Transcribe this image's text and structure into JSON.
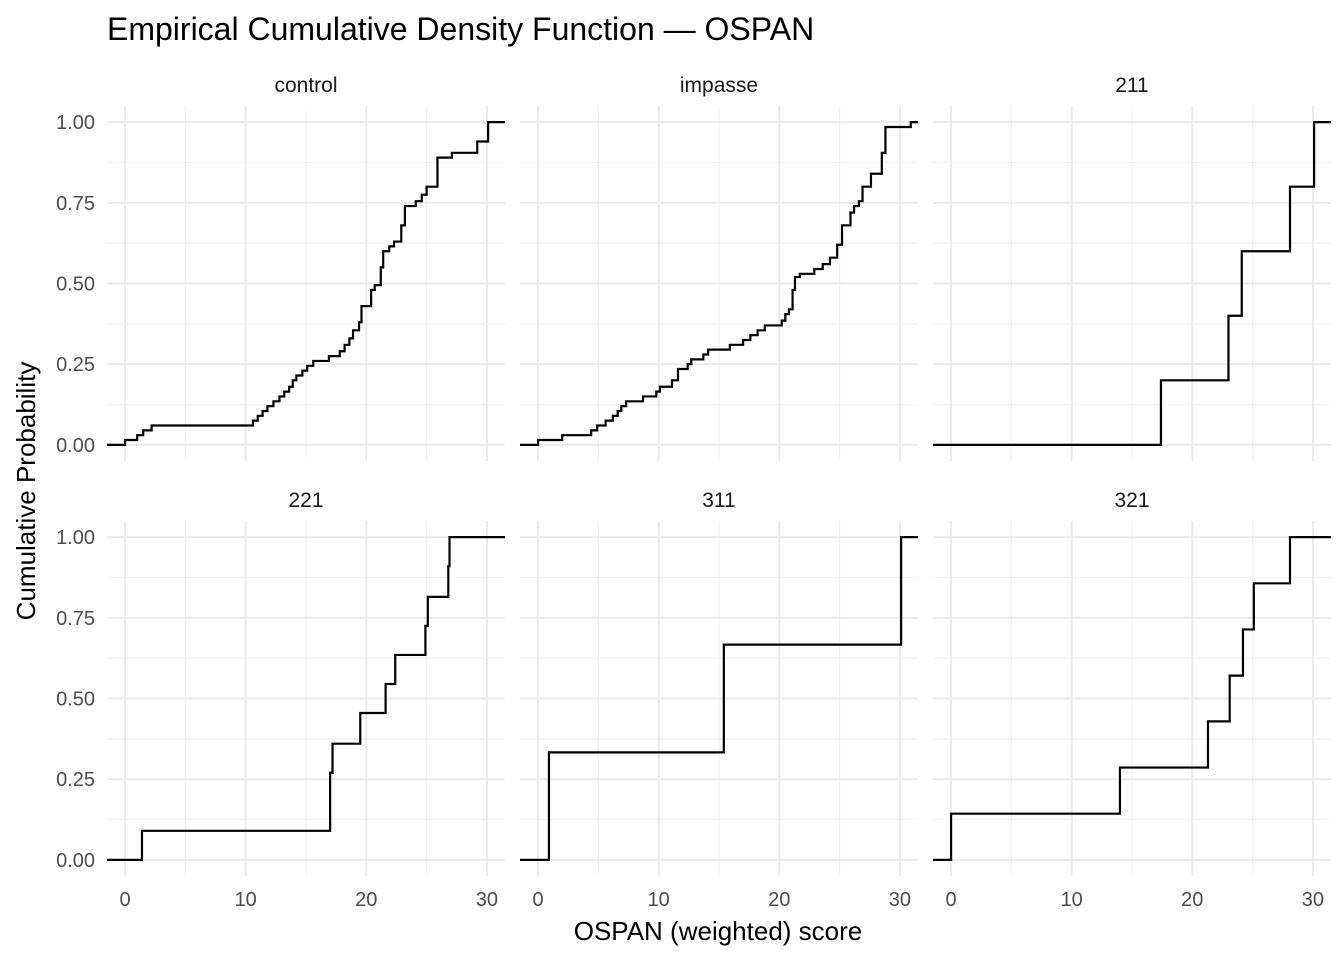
{
  "chart_data": {
    "type": "line",
    "title": "Empirical Cumulative Density Function — OSPAN",
    "xlabel": "OSPAN (weighted) score",
    "ylabel": "Cumulative Probability",
    "xlim": [
      -1.5,
      31.5
    ],
    "ylim": [
      -0.05,
      1.05
    ],
    "x_ticks": [
      0,
      10,
      20,
      30
    ],
    "x_tick_labels": [
      "0",
      "10",
      "20",
      "30"
    ],
    "y_ticks": [
      0,
      0.25,
      0.5,
      0.75,
      1.0
    ],
    "y_tick_labels": [
      "0.00",
      "0.25",
      "0.50",
      "0.75",
      "1.00"
    ],
    "grid": true,
    "layout": "facet grid, 2 rows x 3 columns, shared axes",
    "panels": [
      {
        "label": "control",
        "steps": [
          [
            -1.5,
            0
          ],
          [
            0,
            0.015
          ],
          [
            1,
            0.03
          ],
          [
            1.5,
            0.045
          ],
          [
            2.2,
            0.06
          ],
          [
            10.6,
            0.075
          ],
          [
            11,
            0.09
          ],
          [
            11.4,
            0.105
          ],
          [
            11.8,
            0.12
          ],
          [
            12.3,
            0.135
          ],
          [
            12.8,
            0.15
          ],
          [
            13.2,
            0.165
          ],
          [
            13.6,
            0.18
          ],
          [
            13.9,
            0.2
          ],
          [
            14.2,
            0.215
          ],
          [
            14.7,
            0.23
          ],
          [
            15.1,
            0.245
          ],
          [
            15.6,
            0.26
          ],
          [
            16.9,
            0.275
          ],
          [
            17.8,
            0.29
          ],
          [
            18.2,
            0.31
          ],
          [
            18.6,
            0.33
          ],
          [
            18.9,
            0.355
          ],
          [
            19.4,
            0.38
          ],
          [
            19.6,
            0.43
          ],
          [
            20.4,
            0.48
          ],
          [
            20.7,
            0.495
          ],
          [
            21.2,
            0.55
          ],
          [
            21.4,
            0.6
          ],
          [
            21.9,
            0.615
          ],
          [
            22.3,
            0.63
          ],
          [
            22.9,
            0.68
          ],
          [
            23.2,
            0.74
          ],
          [
            24.1,
            0.755
          ],
          [
            24.6,
            0.775
          ],
          [
            25,
            0.8
          ],
          [
            25.9,
            0.89
          ],
          [
            27.1,
            0.905
          ],
          [
            29.2,
            0.94
          ],
          [
            30.1,
            1.0
          ],
          [
            31.5,
            1.0
          ]
        ]
      },
      {
        "label": "impasse",
        "steps": [
          [
            -1.5,
            0
          ],
          [
            0,
            0.015
          ],
          [
            2,
            0.03
          ],
          [
            4.4,
            0.045
          ],
          [
            4.9,
            0.06
          ],
          [
            5.6,
            0.075
          ],
          [
            6.2,
            0.09
          ],
          [
            6.6,
            0.105
          ],
          [
            6.9,
            0.12
          ],
          [
            7.3,
            0.135
          ],
          [
            8.7,
            0.15
          ],
          [
            9.8,
            0.165
          ],
          [
            10.1,
            0.18
          ],
          [
            11.1,
            0.2
          ],
          [
            11.6,
            0.235
          ],
          [
            12.4,
            0.25
          ],
          [
            12.7,
            0.265
          ],
          [
            13.7,
            0.28
          ],
          [
            14.1,
            0.295
          ],
          [
            15.9,
            0.31
          ],
          [
            17,
            0.325
          ],
          [
            17.6,
            0.34
          ],
          [
            18.2,
            0.355
          ],
          [
            18.8,
            0.37
          ],
          [
            20.2,
            0.385
          ],
          [
            20.5,
            0.405
          ],
          [
            20.8,
            0.42
          ],
          [
            21.1,
            0.48
          ],
          [
            21.3,
            0.52
          ],
          [
            21.7,
            0.53
          ],
          [
            22.9,
            0.545
          ],
          [
            23.6,
            0.56
          ],
          [
            24.2,
            0.58
          ],
          [
            24.8,
            0.62
          ],
          [
            25.2,
            0.68
          ],
          [
            25.9,
            0.72
          ],
          [
            26.2,
            0.74
          ],
          [
            26.6,
            0.755
          ],
          [
            26.9,
            0.8
          ],
          [
            27.6,
            0.84
          ],
          [
            28.5,
            0.905
          ],
          [
            28.8,
            0.985
          ],
          [
            30.9,
            1.0
          ],
          [
            31.5,
            1.0
          ]
        ]
      },
      {
        "label": "211",
        "steps": [
          [
            -1.5,
            0
          ],
          [
            17.4,
            0.2
          ],
          [
            23,
            0.4
          ],
          [
            24.1,
            0.6
          ],
          [
            28.1,
            0.8
          ],
          [
            30.1,
            1.0
          ],
          [
            31.5,
            1.0
          ]
        ]
      },
      {
        "label": "221",
        "steps": [
          [
            -1.5,
            0
          ],
          [
            1.4,
            0.09
          ],
          [
            17,
            0.27
          ],
          [
            17.2,
            0.36
          ],
          [
            19.5,
            0.455
          ],
          [
            21.6,
            0.545
          ],
          [
            22.4,
            0.635
          ],
          [
            24.9,
            0.725
          ],
          [
            25.1,
            0.815
          ],
          [
            26.8,
            0.91
          ],
          [
            26.9,
            1.0
          ],
          [
            31.5,
            1.0
          ]
        ]
      },
      {
        "label": "311",
        "steps": [
          [
            -1.5,
            0
          ],
          [
            0.9,
            0.333
          ],
          [
            15.4,
            0.667
          ],
          [
            30.1,
            1.0
          ],
          [
            31.5,
            1.0
          ]
        ]
      },
      {
        "label": "321",
        "steps": [
          [
            -1.5,
            0
          ],
          [
            0,
            0.143
          ],
          [
            14,
            0.286
          ],
          [
            21.3,
            0.429
          ],
          [
            23.1,
            0.571
          ],
          [
            24.2,
            0.714
          ],
          [
            25.1,
            0.857
          ],
          [
            28.1,
            1.0
          ],
          [
            31.5,
            1.0
          ]
        ]
      }
    ]
  }
}
